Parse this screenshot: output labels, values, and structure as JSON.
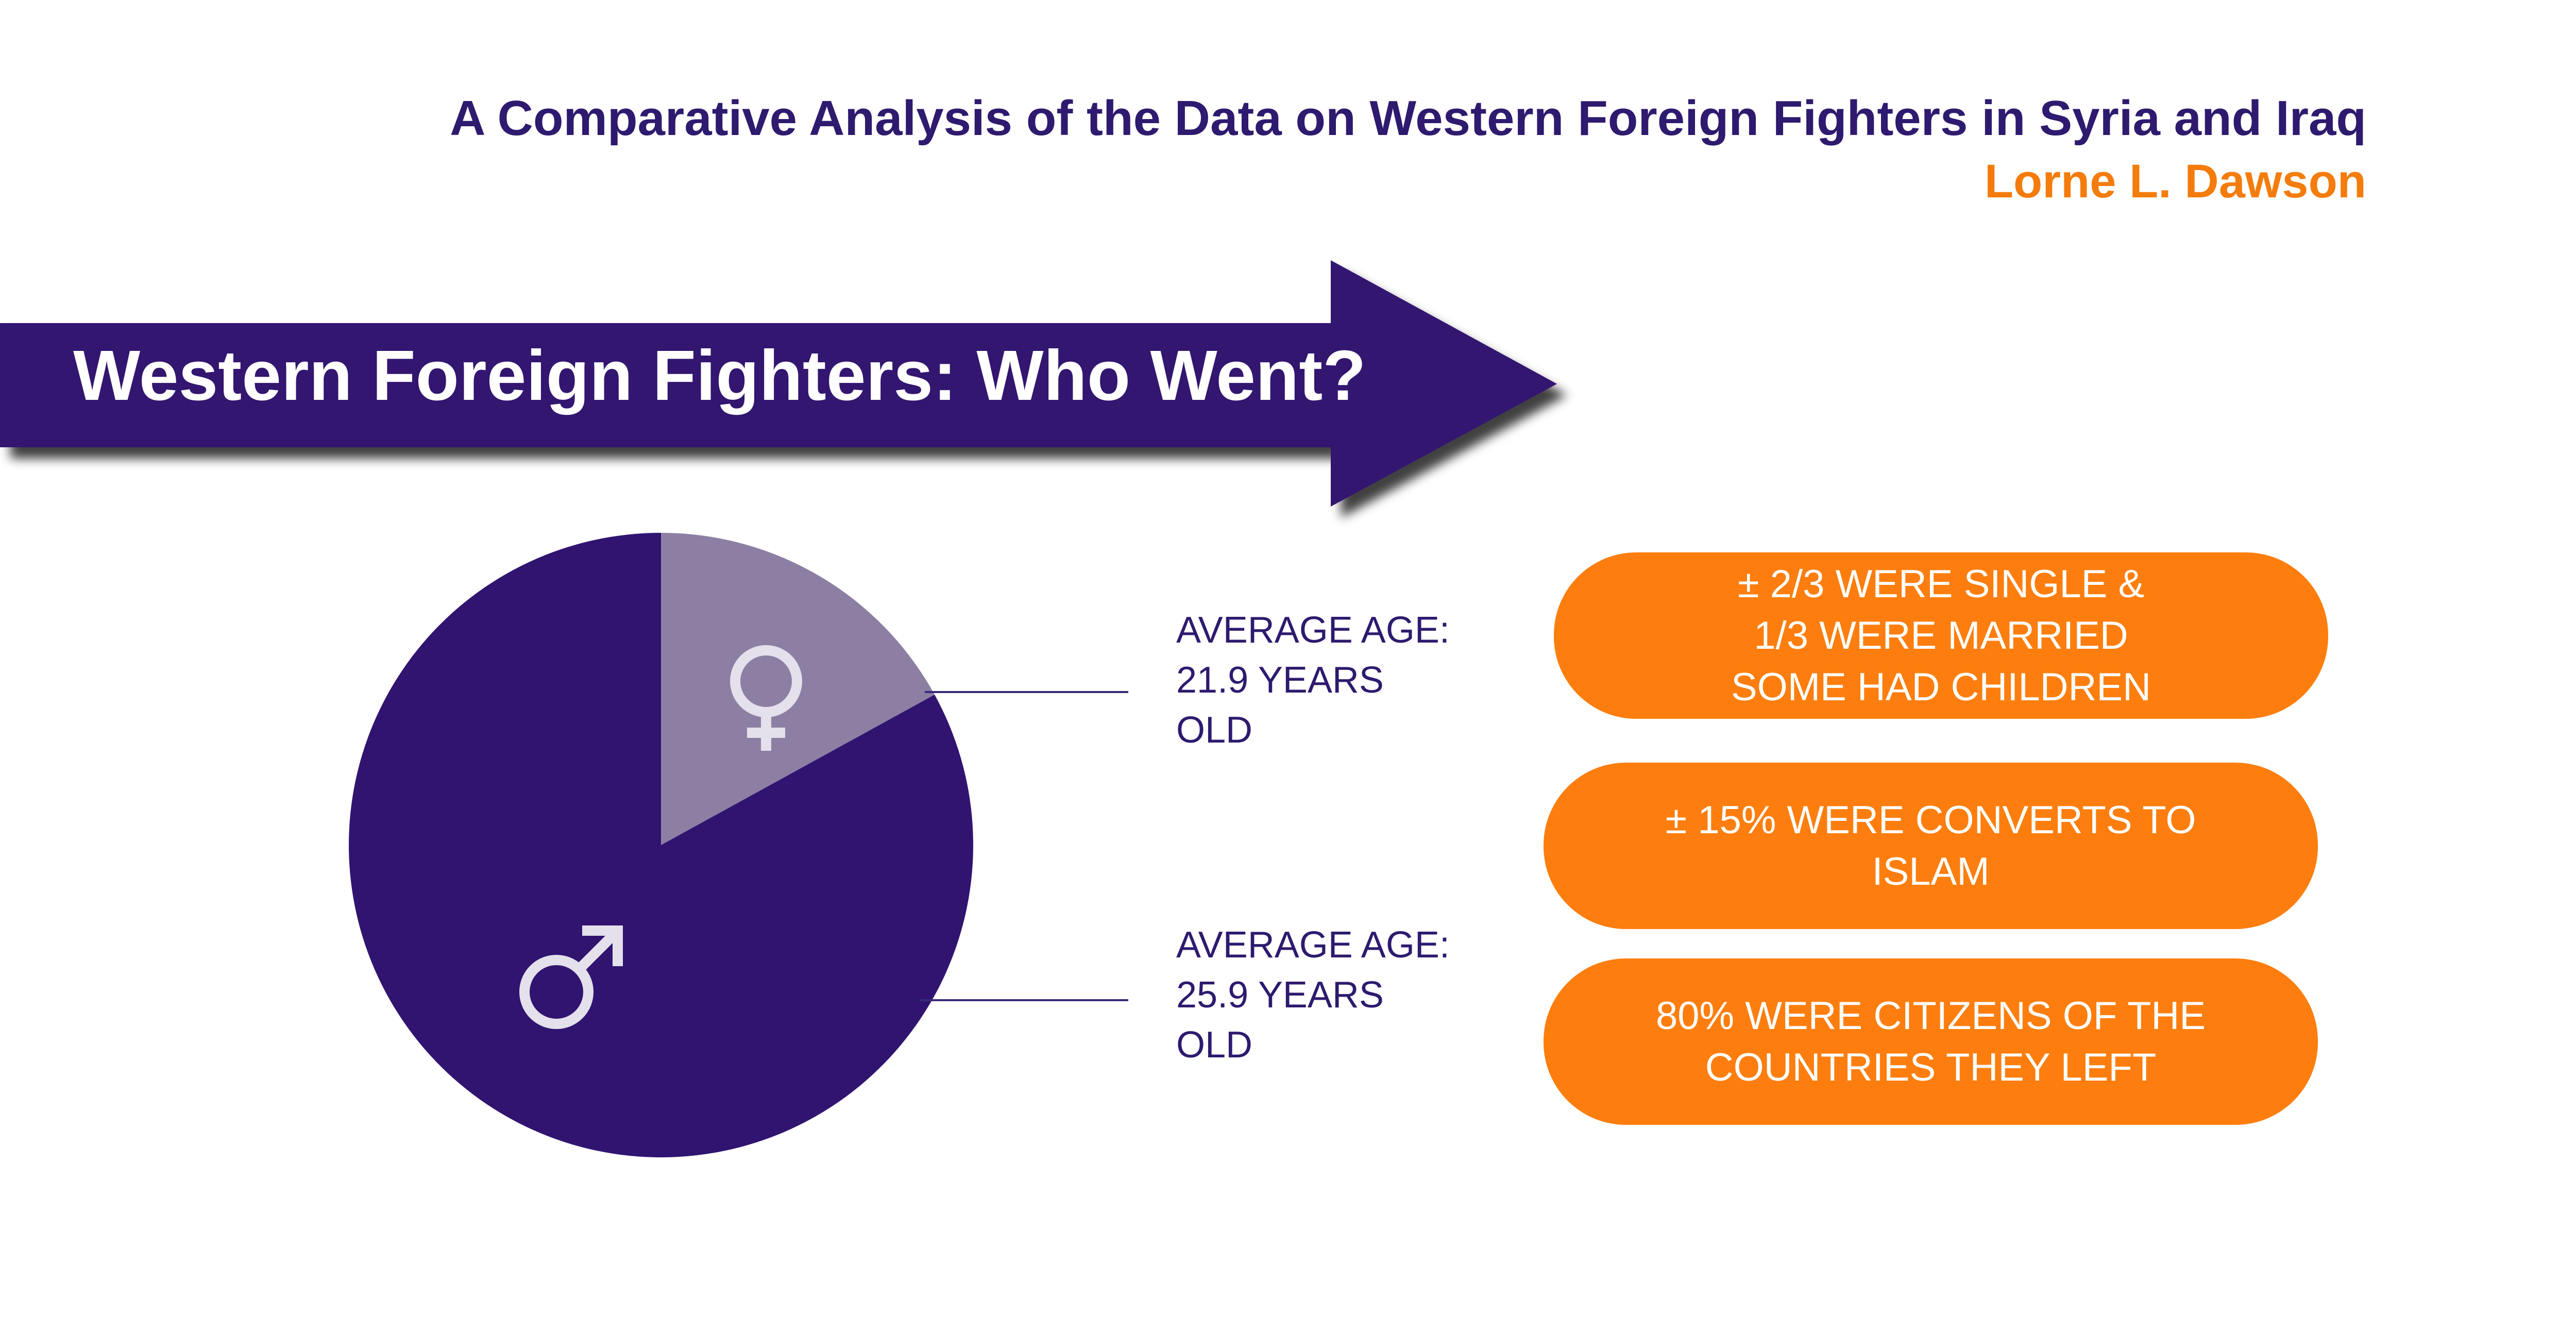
{
  "header": {
    "title": "A Comparative Analysis of the Data on Western Foreign Fighters in Syria and Iraq",
    "author": "Lorne L. Dawson"
  },
  "banner": {
    "title": "Western Foreign Fighters: Who Went?"
  },
  "chart_data": {
    "type": "pie",
    "slices": [
      {
        "icon": "female-symbol-icon",
        "value": 17,
        "color": "#8c7fa3"
      },
      {
        "icon": "male-symbol-icon",
        "value": 83,
        "color": "#301470"
      }
    ],
    "title": "",
    "annotations": [
      {
        "slice": "female",
        "lines": [
          "AVERAGE AGE:",
          "21.9 YEARS",
          "OLD"
        ]
      },
      {
        "slice": "male",
        "lines": [
          "AVERAGE AGE:",
          "25.9 YEARS",
          "OLD"
        ]
      }
    ]
  },
  "facts": [
    {
      "lines": [
        "± 2/3 WERE SINGLE &",
        "1/3 WERE MARRIED",
        "SOME HAD CHILDREN"
      ]
    },
    {
      "lines": [
        "± 15% WERE CONVERTS TO",
        "ISLAM"
      ]
    },
    {
      "lines": [
        "80% WERE CITIZENS OF THE",
        "COUNTRIES THEY LEFT"
      ]
    }
  ],
  "colors": {
    "primary": "#2e1a6e",
    "accent": "#f47c0c",
    "pill": "#fd7e0e",
    "female_slice": "#8c7fa3",
    "male_slice": "#301470"
  }
}
